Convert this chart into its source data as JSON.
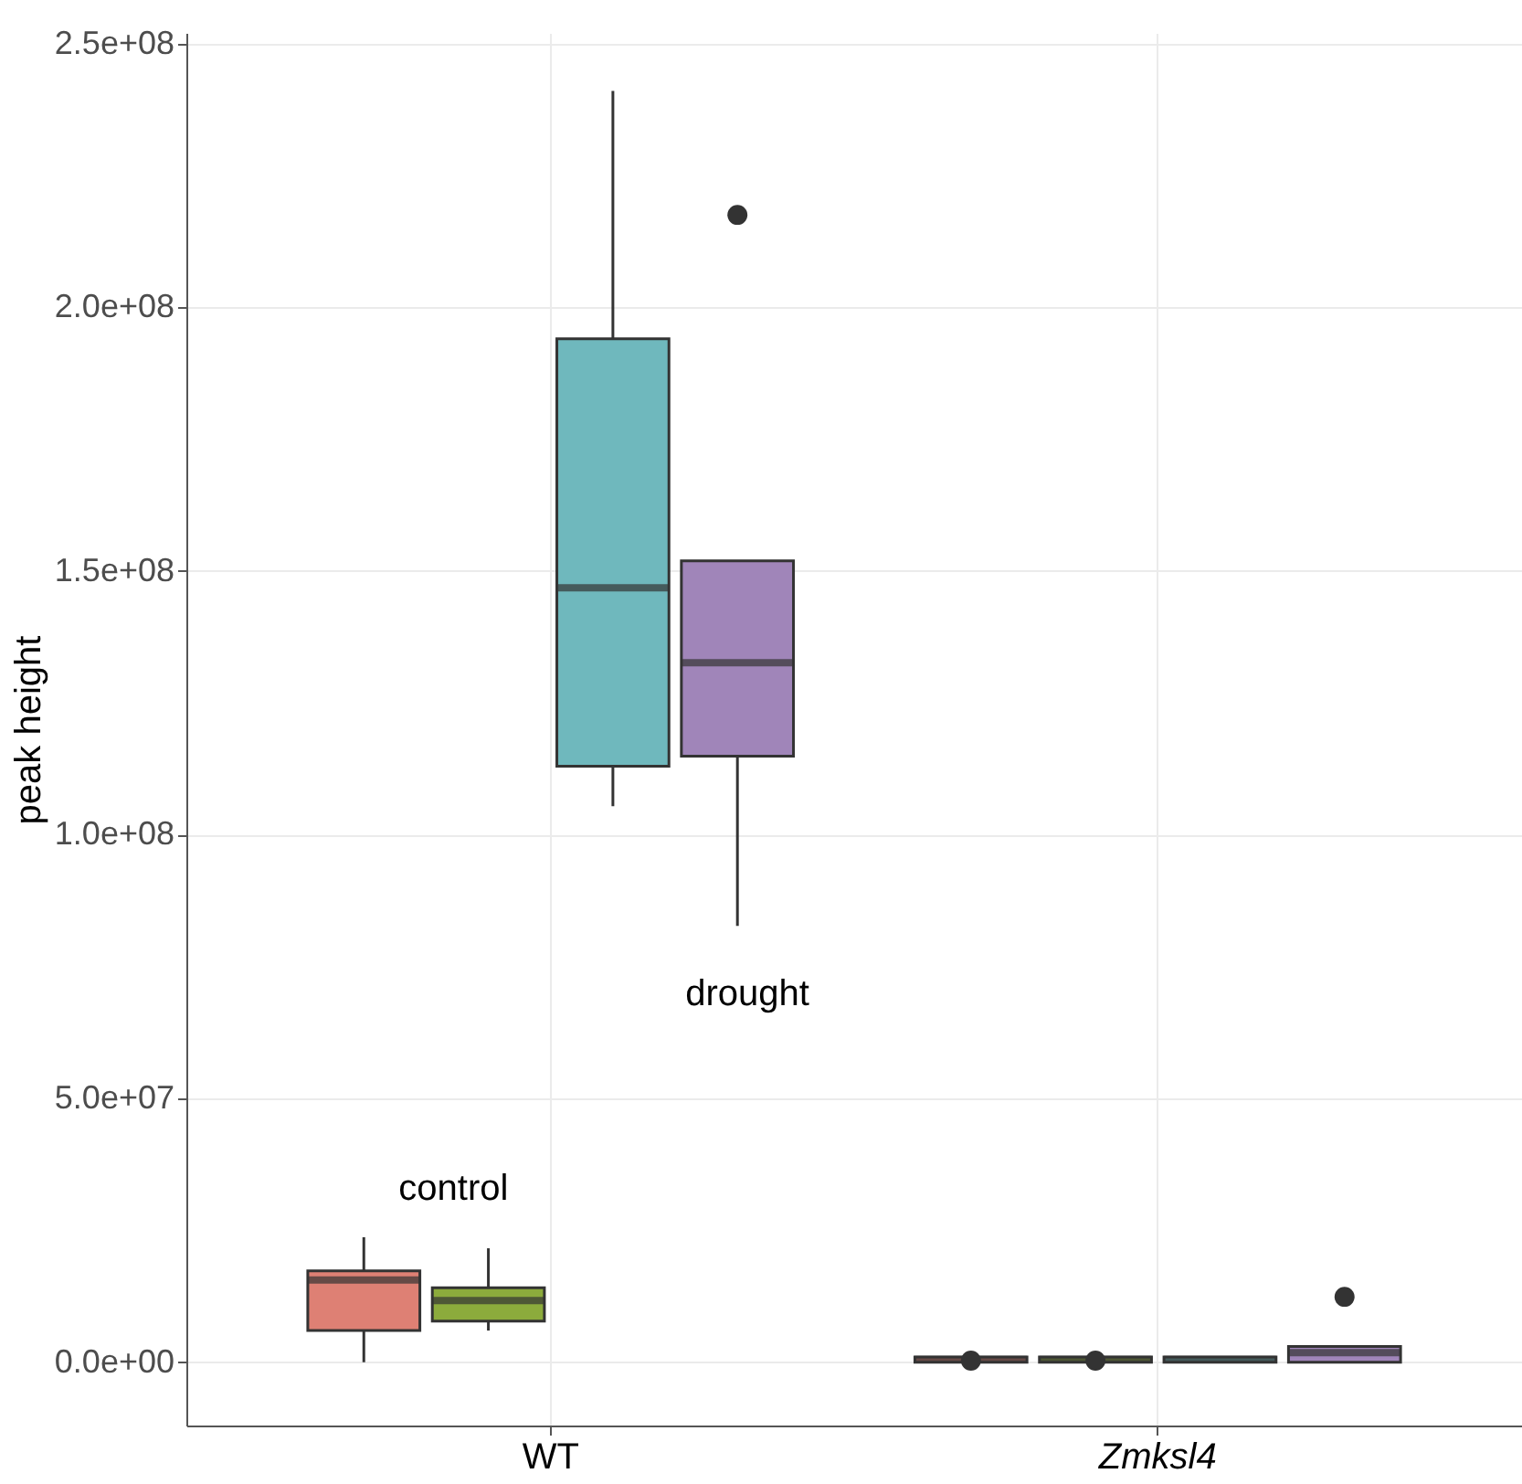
{
  "chart_data": {
    "type": "box",
    "ylabel": "peak height",
    "categories": [
      "WT",
      "Zmksl4"
    ],
    "series": [
      {
        "color": "#de8074",
        "boxes": [
          {
            "low": 0,
            "q1": 6000000,
            "median": 15600000,
            "q3": 17300000,
            "high": 23700000
          },
          {
            "low": 0,
            "q1": 0,
            "median": 500000,
            "q3": 1000000,
            "high": 1000000,
            "outliers": [
              300000
            ]
          }
        ]
      },
      {
        "color": "#8cab3c",
        "boxes": [
          {
            "low": 6000000,
            "q1": 7800000,
            "median": 11700000,
            "q3": 14100000,
            "high": 21600000
          },
          {
            "low": 0,
            "q1": 0,
            "median": 500000,
            "q3": 1000000,
            "high": 1000000,
            "outliers": [
              300000
            ]
          }
        ]
      },
      {
        "color": "#6fb8bd",
        "boxes": [
          {
            "low": 105400000,
            "q1": 113000000,
            "median": 146800000,
            "q3": 194000000,
            "high": 241000000
          },
          {
            "low": 0,
            "q1": 0,
            "median": 500000,
            "q3": 1000000,
            "high": 1000000
          }
        ]
      },
      {
        "color": "#a085b9",
        "boxes": [
          {
            "low": 82700000,
            "q1": 114900000,
            "median": 132600000,
            "q3": 151900000,
            "high": 151900000,
            "outliers": [
              217500000
            ]
          },
          {
            "low": 0,
            "q1": 0,
            "median": 1800000,
            "q3": 3000000,
            "high": 3000000,
            "outliers": [
              12400000
            ]
          }
        ]
      }
    ],
    "ylim": [
      -12000000,
      252000000
    ],
    "yticks": [
      {
        "value": 0,
        "label": "0.0e+00"
      },
      {
        "value": 50000000,
        "label": "5.0e+07"
      },
      {
        "value": 100000000,
        "label": "1.0e+08"
      },
      {
        "value": 150000000,
        "label": "1.5e+08"
      },
      {
        "value": 200000000,
        "label": "2.0e+08"
      },
      {
        "value": 250000000,
        "label": "2.5e+08"
      }
    ],
    "annotations": [
      "control",
      "drought"
    ],
    "grid": true
  }
}
